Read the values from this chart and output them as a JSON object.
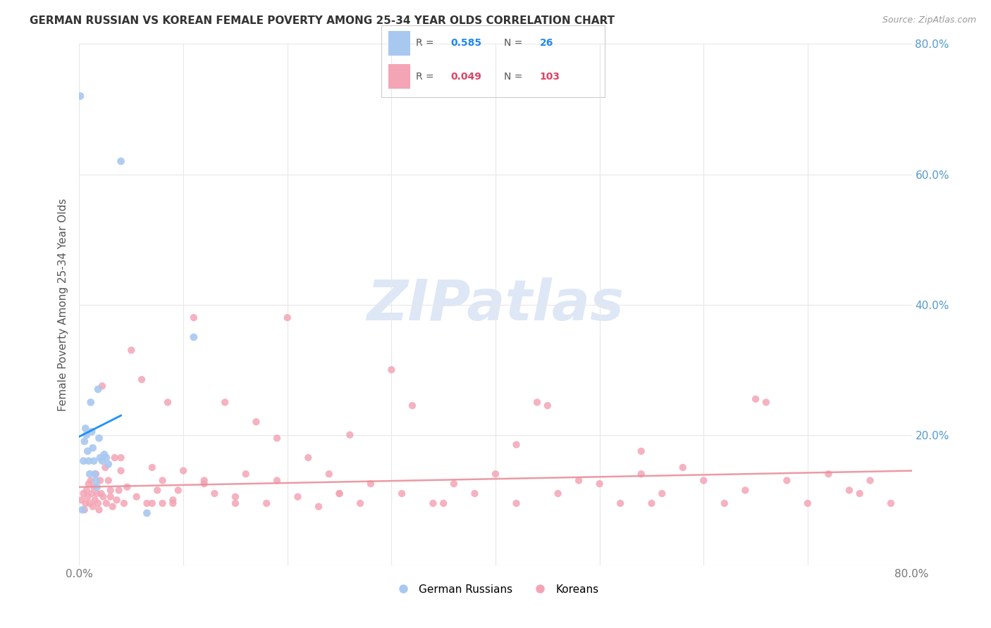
{
  "title": "GERMAN RUSSIAN VS KOREAN FEMALE POVERTY AMONG 25-34 YEAR OLDS CORRELATION CHART",
  "source": "Source: ZipAtlas.com",
  "ylabel": "Female Poverty Among 25-34 Year Olds",
  "xlim": [
    0.0,
    0.8
  ],
  "ylim": [
    0.0,
    0.8
  ],
  "xtick_positions": [
    0.0,
    0.1,
    0.2,
    0.3,
    0.4,
    0.5,
    0.6,
    0.7,
    0.8
  ],
  "xticklabels": [
    "0.0%",
    "",
    "",
    "",
    "",
    "",
    "",
    "",
    "80.0%"
  ],
  "ytick_positions": [
    0.0,
    0.2,
    0.4,
    0.6,
    0.8
  ],
  "yticklabels_right": [
    "",
    "20.0%",
    "40.0%",
    "60.0%",
    "80.0%"
  ],
  "R_blue": 0.585,
  "N_blue": 26,
  "R_pink": 0.049,
  "N_pink": 103,
  "blue_scatter_color": "#a8c8f0",
  "pink_scatter_color": "#f4a5b5",
  "blue_line_color": "#1e90ff",
  "pink_line_color": "#e8909a",
  "blue_dash_color": "#b0d0f0",
  "watermark_color": "#c8d8f0",
  "grid_color": "#e8e8e8",
  "gr_x": [
    0.001,
    0.003,
    0.004,
    0.005,
    0.006,
    0.007,
    0.008,
    0.009,
    0.01,
    0.011,
    0.012,
    0.013,
    0.014,
    0.015,
    0.016,
    0.017,
    0.018,
    0.019,
    0.02,
    0.022,
    0.024,
    0.026,
    0.028,
    0.04,
    0.065,
    0.11
  ],
  "gr_y": [
    0.72,
    0.085,
    0.16,
    0.19,
    0.21,
    0.2,
    0.175,
    0.16,
    0.14,
    0.25,
    0.205,
    0.18,
    0.16,
    0.14,
    0.13,
    0.12,
    0.27,
    0.195,
    0.165,
    0.16,
    0.17,
    0.165,
    0.155,
    0.62,
    0.08,
    0.35
  ],
  "k_x": [
    0.002,
    0.004,
    0.005,
    0.006,
    0.007,
    0.008,
    0.009,
    0.01,
    0.011,
    0.012,
    0.013,
    0.014,
    0.015,
    0.016,
    0.017,
    0.018,
    0.019,
    0.02,
    0.021,
    0.022,
    0.023,
    0.025,
    0.026,
    0.028,
    0.03,
    0.032,
    0.034,
    0.036,
    0.038,
    0.04,
    0.043,
    0.046,
    0.05,
    0.055,
    0.06,
    0.065,
    0.07,
    0.075,
    0.08,
    0.085,
    0.09,
    0.095,
    0.1,
    0.11,
    0.12,
    0.13,
    0.14,
    0.15,
    0.16,
    0.17,
    0.18,
    0.19,
    0.2,
    0.21,
    0.22,
    0.23,
    0.24,
    0.25,
    0.26,
    0.27,
    0.28,
    0.3,
    0.32,
    0.34,
    0.36,
    0.38,
    0.4,
    0.42,
    0.44,
    0.46,
    0.48,
    0.5,
    0.52,
    0.54,
    0.56,
    0.58,
    0.6,
    0.62,
    0.64,
    0.66,
    0.68,
    0.7,
    0.72,
    0.74,
    0.76,
    0.78,
    0.54,
    0.31,
    0.42,
    0.19,
    0.09,
    0.04,
    0.15,
    0.25,
    0.35,
    0.45,
    0.55,
    0.65,
    0.75,
    0.07,
    0.12,
    0.08,
    0.03
  ],
  "k_y": [
    0.1,
    0.11,
    0.085,
    0.095,
    0.115,
    0.105,
    0.125,
    0.095,
    0.13,
    0.11,
    0.09,
    0.12,
    0.1,
    0.14,
    0.11,
    0.095,
    0.085,
    0.13,
    0.11,
    0.275,
    0.105,
    0.15,
    0.095,
    0.13,
    0.115,
    0.09,
    0.165,
    0.1,
    0.115,
    0.145,
    0.095,
    0.12,
    0.33,
    0.105,
    0.285,
    0.095,
    0.15,
    0.115,
    0.13,
    0.25,
    0.1,
    0.115,
    0.145,
    0.38,
    0.125,
    0.11,
    0.25,
    0.105,
    0.14,
    0.22,
    0.095,
    0.13,
    0.38,
    0.105,
    0.165,
    0.09,
    0.14,
    0.11,
    0.2,
    0.095,
    0.125,
    0.3,
    0.245,
    0.095,
    0.125,
    0.11,
    0.14,
    0.095,
    0.25,
    0.11,
    0.13,
    0.125,
    0.095,
    0.14,
    0.11,
    0.15,
    0.13,
    0.095,
    0.115,
    0.25,
    0.13,
    0.095,
    0.14,
    0.115,
    0.13,
    0.095,
    0.175,
    0.11,
    0.185,
    0.195,
    0.095,
    0.165,
    0.095,
    0.11,
    0.095,
    0.245,
    0.095,
    0.255,
    0.11,
    0.095,
    0.13,
    0.095,
    0.105
  ],
  "pink_line_x": [
    0.0,
    0.8
  ],
  "pink_line_y": [
    0.12,
    0.145
  ]
}
